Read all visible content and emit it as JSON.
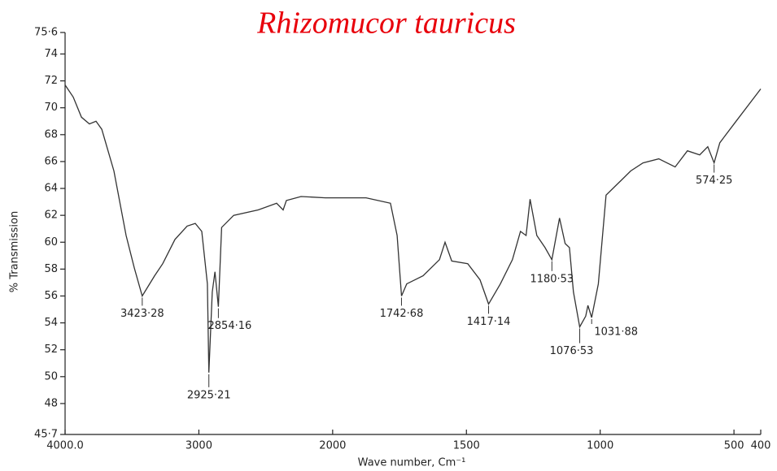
{
  "chart_data": {
    "type": "line",
    "title": "Rhizomucor tauricus",
    "xlabel": "Wave number, Cm⁻¹",
    "ylabel": "% Transmission",
    "xlim": [
      4000,
      400
    ],
    "xbreak": 2000,
    "ylim": [
      45.7,
      75.6
    ],
    "xticks": [
      {
        "value": 4000,
        "label": "4000.0"
      },
      3000,
      2000,
      1500,
      1000,
      500,
      400
    ],
    "yticks": [
      {
        "value": 45.7,
        "label": "45·7"
      },
      48,
      50,
      52,
      54,
      56,
      58,
      60,
      62,
      64,
      66,
      68,
      70,
      72,
      74,
      {
        "value": 75.6,
        "label": "75·6"
      }
    ],
    "x": [
      4000,
      3939,
      3878,
      3818,
      3769,
      3726,
      3635,
      3544,
      3483,
      3423.28,
      3331,
      3270,
      3179,
      3088,
      3027,
      2978,
      2936,
      2925.21,
      2900,
      2880,
      2854.16,
      2830,
      2740,
      2557,
      2419,
      2370,
      2346,
      2236,
      2054,
      1875,
      1784,
      1759,
      1742.68,
      1723,
      1662,
      1601,
      1580,
      1555,
      1495,
      1449,
      1417.14,
      1373,
      1328,
      1298,
      1277,
      1262,
      1237,
      1206,
      1180.53,
      1152,
      1131,
      1115,
      1100,
      1076.53,
      1054,
      1046,
      1031.88,
      1007,
      978,
      932,
      886,
      840,
      781,
      720,
      674,
      628,
      598,
      574.25,
      553,
      492,
      400
    ],
    "series": [
      {
        "color": "#333333",
        "values": [
          71.7,
          70.8,
          69.3,
          68.8,
          69.0,
          68.4,
          65.3,
          60.5,
          58.1,
          56.0,
          57.5,
          58.4,
          60.2,
          61.2,
          61.4,
          60.8,
          56.9,
          50.3,
          56.3,
          57.8,
          55.2,
          61.1,
          62.0,
          62.4,
          62.9,
          62.4,
          63.1,
          63.4,
          63.3,
          63.3,
          62.9,
          60.5,
          56.0,
          56.9,
          57.5,
          58.7,
          60.0,
          58.6,
          58.4,
          57.2,
          55.4,
          56.9,
          58.7,
          60.8,
          60.5,
          63.2,
          60.5,
          59.6,
          58.7,
          61.8,
          59.9,
          59.6,
          56.3,
          53.7,
          54.5,
          55.3,
          54.4,
          56.9,
          63.5,
          64.4,
          65.3,
          65.9,
          66.2,
          65.6,
          66.8,
          66.5,
          67.1,
          65.9,
          67.4,
          69.0,
          71.4
        ]
      }
    ],
    "annotations": [
      {
        "text": "3423·28",
        "x": 3423.28,
        "y": 56.0
      },
      {
        "text": "2925·21",
        "x": 2925.21,
        "y": 50.3
      },
      {
        "text": "2854·16",
        "x": 2854.16,
        "y": 55.2
      },
      {
        "text": "1742·68",
        "x": 1742.68,
        "y": 56.0
      },
      {
        "text": "1417·14",
        "x": 1417.14,
        "y": 55.4
      },
      {
        "text": "1180·53",
        "x": 1180.53,
        "y": 58.7
      },
      {
        "text": "1076·53",
        "x": 1076.53,
        "y": 53.7
      },
      {
        "text": "1031·88",
        "x": 1031.88,
        "y": 54.4
      },
      {
        "text": "574·25",
        "x": 574.25,
        "y": 65.9
      }
    ]
  }
}
